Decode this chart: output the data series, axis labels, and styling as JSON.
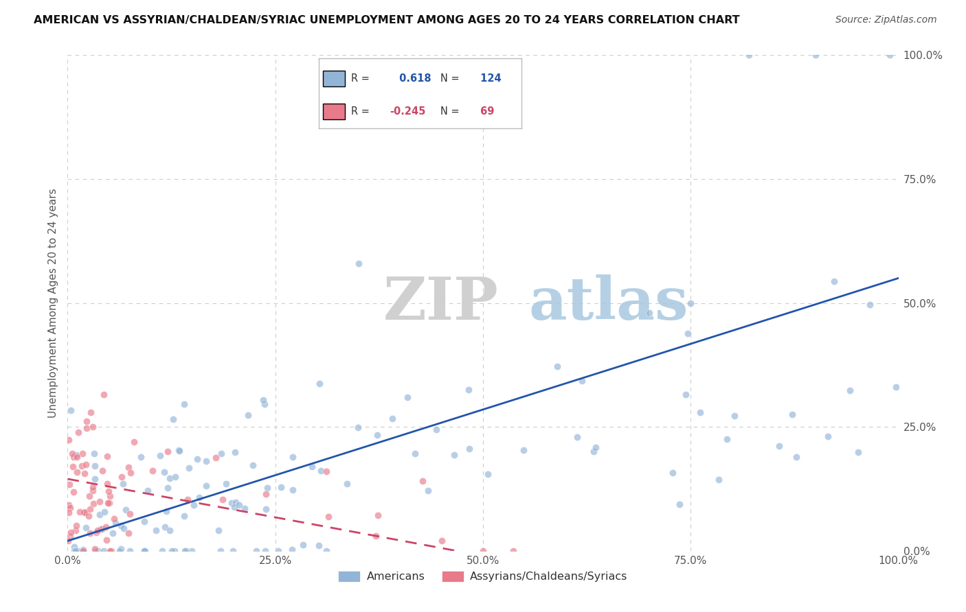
{
  "title": "AMERICAN VS ASSYRIAN/CHALDEAN/SYRIAC UNEMPLOYMENT AMONG AGES 20 TO 24 YEARS CORRELATION CHART",
  "source": "Source: ZipAtlas.com",
  "ylabel": "Unemployment Among Ages 20 to 24 years",
  "xlim": [
    0,
    1.0
  ],
  "ylim": [
    0,
    1.0
  ],
  "xticks": [
    0.0,
    0.25,
    0.5,
    0.75,
    1.0
  ],
  "yticks": [
    0.0,
    0.25,
    0.5,
    0.75,
    1.0
  ],
  "xticklabels": [
    "0.0%",
    "25.0%",
    "50.0%",
    "75.0%",
    "100.0%"
  ],
  "yticklabels": [
    "0.0%",
    "25.0%",
    "50.0%",
    "75.0%",
    "100.0%"
  ],
  "legend1_label": "Americans",
  "legend2_label": "Assyrians/Chaldeans/Syriacs",
  "R1": 0.618,
  "N1": 124,
  "R2": -0.245,
  "N2": 69,
  "color_american": "#92b4d7",
  "color_assyrian": "#e87a8a",
  "color_line_american": "#2255aa",
  "color_line_assyrian": "#cc4466",
  "watermark_zip": "ZIP",
  "watermark_atlas": "atlas",
  "background_color": "#ffffff",
  "grid_color": "#cccccc",
  "seed_am": 1234,
  "seed_as": 5678
}
